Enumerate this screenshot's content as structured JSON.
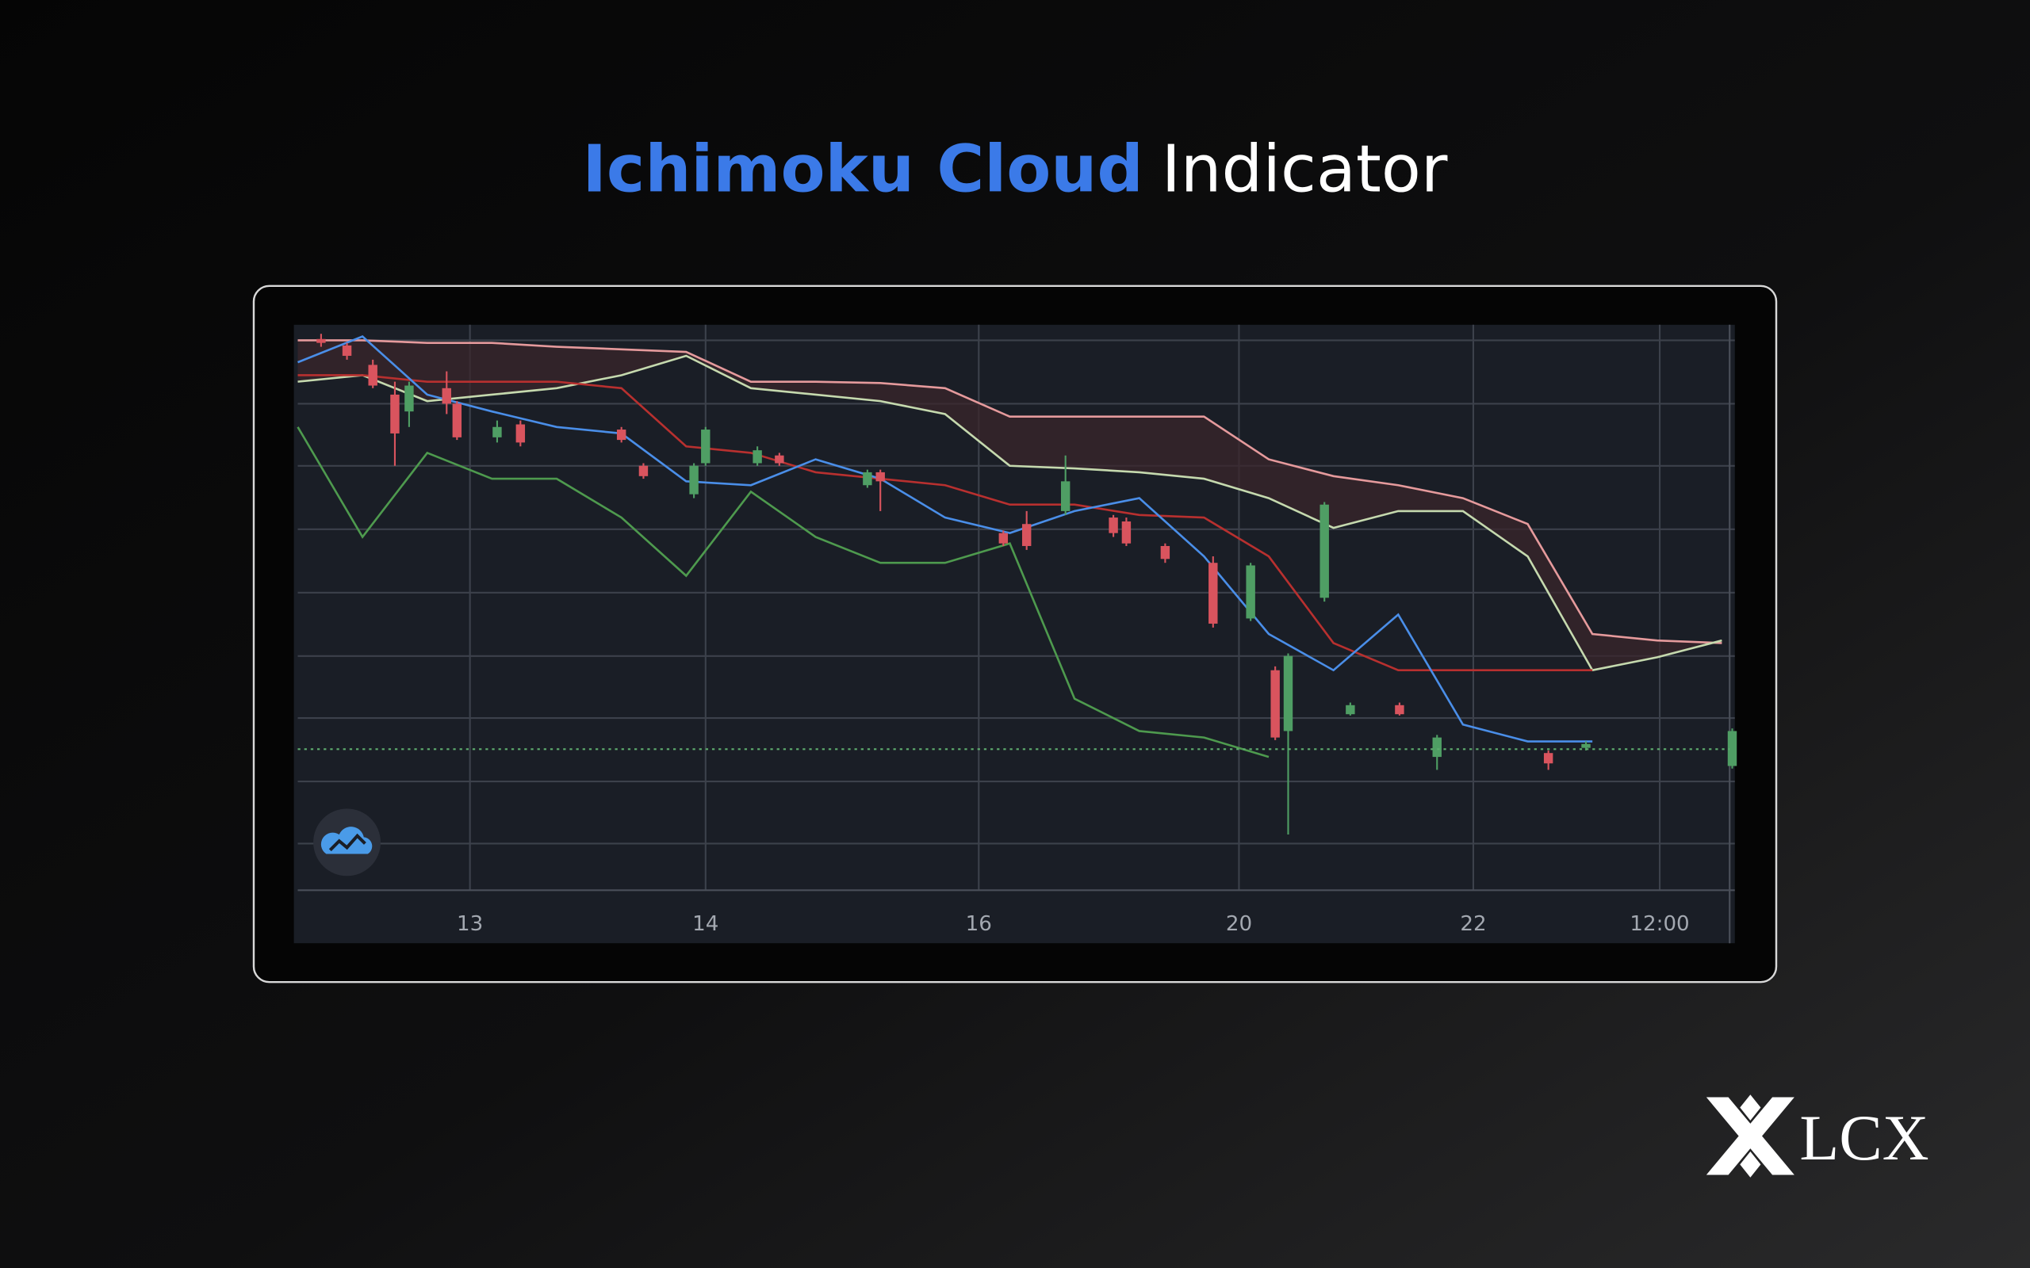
{
  "title_highlight": "Ichimoku Cloud",
  "title_rest": "Indicator",
  "brand": "LCX",
  "chart_data": {
    "type": "candlestick",
    "x": [
      0,
      5,
      10,
      15,
      20,
      25,
      30,
      35,
      40,
      45,
      50,
      55,
      60,
      65,
      70,
      75,
      80,
      85,
      90,
      95,
      100,
      105,
      110
    ],
    "series": [
      {
        "color": "#e59a9c",
        "values": [
          85.4,
          85.4,
          85,
          85,
          84.4,
          84,
          83.6,
          79,
          79,
          78.8,
          78,
          73.6,
          73.6,
          73.6,
          73.6,
          67,
          64.4,
          63,
          61,
          57,
          40,
          39,
          38.6
        ]
      },
      {
        "color": "#c5d9ae",
        "values": [
          79,
          80,
          76,
          77,
          78,
          80,
          83,
          78,
          77,
          76,
          74,
          66,
          65.6,
          65,
          64,
          61,
          56.4,
          59,
          59,
          52,
          34.4,
          36.4,
          39
        ]
      },
      {
        "color": "#b8302f",
        "values": [
          80,
          80,
          79,
          79,
          79,
          78,
          69,
          68,
          65,
          64,
          63,
          60,
          60,
          58.4,
          58,
          52,
          38.6,
          34.4,
          34.4,
          34.4,
          34.4,
          null,
          null
        ]
      },
      {
        "color": "#4a8ee8",
        "values": [
          82,
          86,
          77,
          74.4,
          72,
          71,
          63.6,
          63,
          67,
          64,
          58,
          55.6,
          59,
          61,
          52,
          40,
          34.4,
          43,
          26,
          23.4,
          23.4,
          null,
          null
        ]
      },
      {
        "color": "#4e9a4e",
        "values": [
          72,
          55,
          68,
          64,
          64,
          58,
          49,
          62,
          55,
          51,
          51,
          54,
          30,
          25,
          24,
          21,
          null,
          null,
          null,
          null,
          null,
          null,
          null
        ]
      }
    ],
    "candles": {
      "x": [
        1.8,
        3.8,
        5.8,
        7.5,
        8.6,
        11.5,
        12.3,
        15.4,
        17.2,
        25,
        26.7,
        30.6,
        31.5,
        35.5,
        37.2,
        44,
        45,
        54.5,
        56.3,
        59.3,
        63,
        64,
        67,
        70.7,
        73.6,
        75.5,
        76.5,
        79.3,
        81.3,
        85.1,
        88,
        96.6,
        99.5,
        110.8
      ],
      "open": [
        85.6,
        84.6,
        81.6,
        77,
        74.4,
        78,
        75.6,
        70.4,
        72.4,
        71.6,
        66,
        61.6,
        66.4,
        66.4,
        67.6,
        63,
        65,
        55.6,
        57,
        59,
        58,
        57.4,
        53.6,
        51,
        42.4,
        34.4,
        25,
        45.6,
        27.6,
        29,
        21,
        21.6,
        22.4,
        19.6
      ],
      "high": [
        86.4,
        85,
        82.4,
        79,
        79,
        80.6,
        76,
        73,
        73,
        72,
        66.4,
        66.4,
        72,
        69,
        68,
        65.4,
        65.4,
        56,
        59,
        67.6,
        58.4,
        58,
        54,
        52,
        51,
        35,
        37,
        60.4,
        29.4,
        29.4,
        24.4,
        22,
        23.4,
        25.4
      ],
      "low": [
        84.4,
        82.4,
        78,
        66,
        72,
        74,
        70,
        69.6,
        69,
        69.6,
        64,
        61,
        66,
        66,
        66,
        62.6,
        59,
        53.6,
        53,
        58.4,
        55,
        53.6,
        51,
        41,
        42,
        23.6,
        9,
        45,
        27.4,
        27.4,
        19,
        19,
        22,
        19.2
      ],
      "close": [
        85,
        83,
        78.4,
        71,
        78.4,
        75.6,
        70.4,
        72,
        69.6,
        70,
        64.4,
        66,
        71.6,
        68.4,
        66.4,
        65,
        63.6,
        54,
        53.6,
        63.6,
        55.6,
        54,
        51.6,
        41.6,
        50.6,
        24,
        36.6,
        60,
        29,
        27.6,
        24,
        20,
        23,
        25
      ]
    },
    "up_color": "#4f9e64",
    "down_color": "#d9545e",
    "price_line": 22.2,
    "price_line_color": "#5fae6f",
    "xlim": [
      0,
      111
    ],
    "ylim": [
      0,
      88
    ],
    "xticks": [
      {
        "value": 13.3,
        "label": "13"
      },
      {
        "value": 31.5,
        "label": "14"
      },
      {
        "value": 52.6,
        "label": "16"
      },
      {
        "value": 72.7,
        "label": "20"
      },
      {
        "value": 90.8,
        "label": "22"
      },
      {
        "value": 105.2,
        "label": "12:00"
      }
    ],
    "yticks": [
      7.6,
      17.2,
      27,
      36.6,
      46.4,
      56.2,
      66,
      75.6,
      85.4
    ],
    "grid": true
  }
}
